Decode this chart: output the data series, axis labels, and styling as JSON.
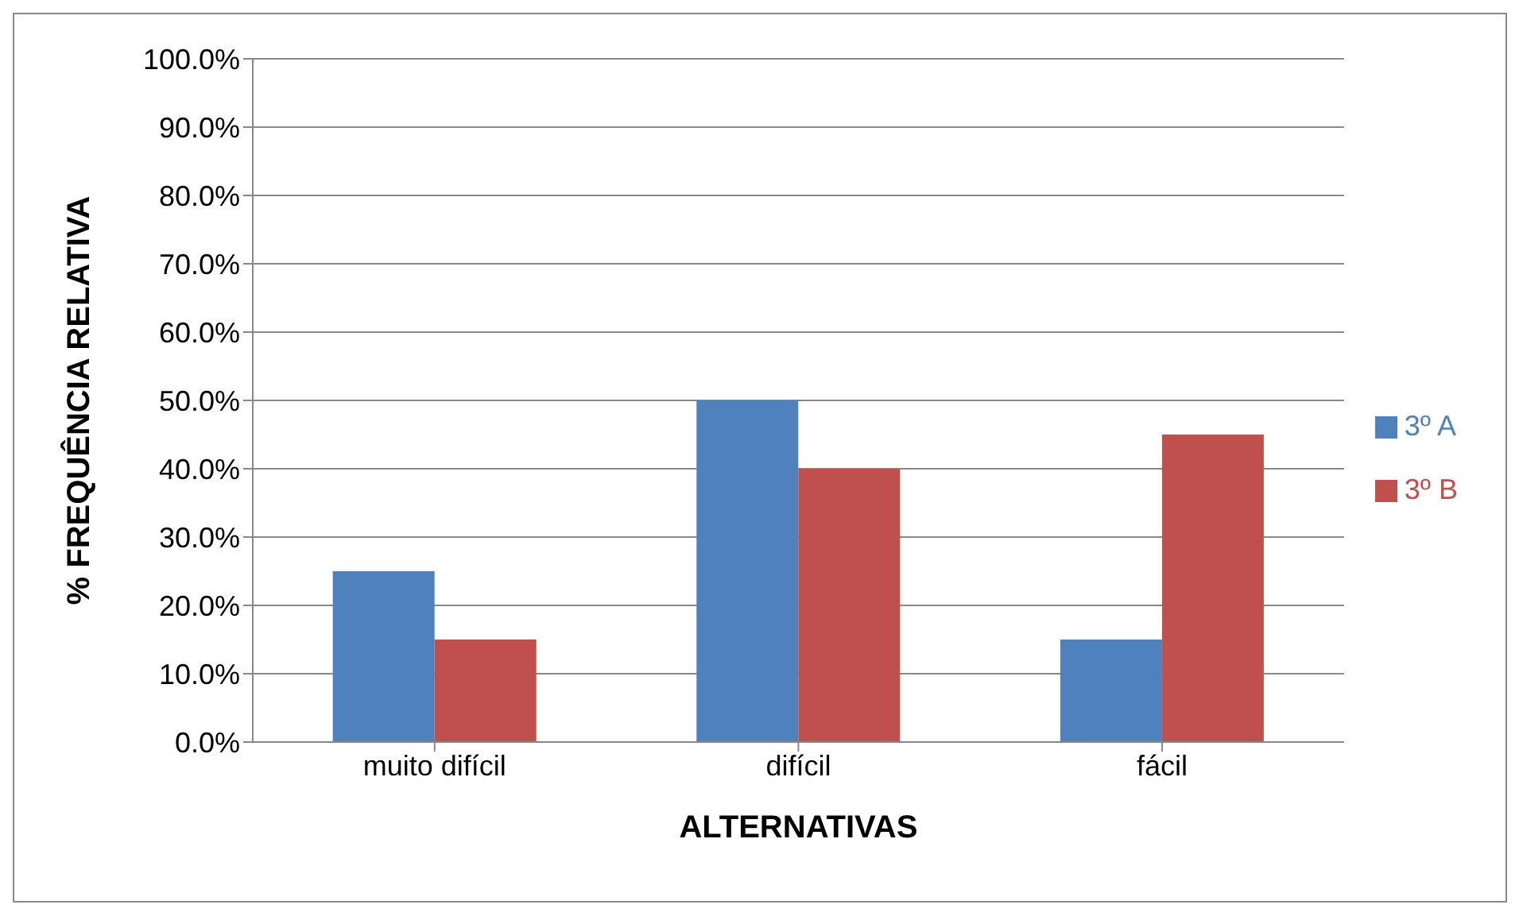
{
  "chart_data": {
    "type": "bar",
    "xlabel": "ALTERNATIVAS",
    "ylabel": "% FREQUÊNCIA RELATIVA",
    "categories": [
      "muito difícil",
      "difícil",
      "fácil"
    ],
    "series": [
      {
        "name": "3º A",
        "color": "#4f81bd",
        "values": [
          25,
          50,
          15
        ]
      },
      {
        "name": "3º B",
        "color": "#c0504d",
        "values": [
          15,
          40,
          45
        ]
      }
    ],
    "ylim": [
      0,
      100
    ],
    "yticks": [
      {
        "value": 0,
        "label": "0.0%"
      },
      {
        "value": 10,
        "label": "10.0%"
      },
      {
        "value": 20,
        "label": "20.0%"
      },
      {
        "value": 30,
        "label": "30.0%"
      },
      {
        "value": 40,
        "label": "40.0%"
      },
      {
        "value": 50,
        "label": "50.0%"
      },
      {
        "value": 60,
        "label": "60.0%"
      },
      {
        "value": 70,
        "label": "70.0%"
      },
      {
        "value": 80,
        "label": "80.0%"
      },
      {
        "value": 90,
        "label": "90.0%"
      },
      {
        "value": 100,
        "label": "100.0%"
      }
    ],
    "grid": "y",
    "legend": "right"
  }
}
